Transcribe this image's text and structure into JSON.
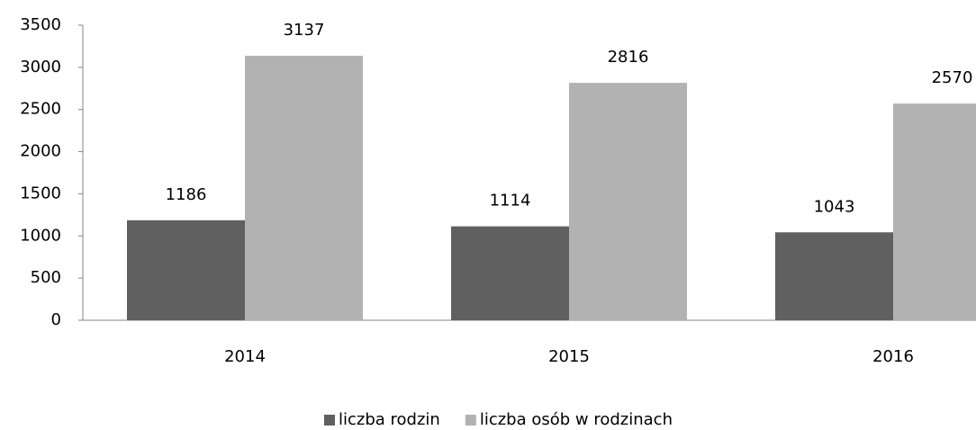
{
  "chart_data": {
    "type": "bar",
    "categories": [
      "2014",
      "2015",
      "2016"
    ],
    "series": [
      {
        "name": "liczba rodzin",
        "color": "#606060",
        "values": [
          1186,
          1114,
          1043
        ]
      },
      {
        "name": "liczba osób w rodzinach",
        "color": "#b2b2b2",
        "values": [
          3137,
          2816,
          2570
        ]
      }
    ],
    "ylim": [
      0,
      3500
    ],
    "yticks": [
      0,
      500,
      1000,
      1500,
      2000,
      2500,
      3000,
      3500
    ],
    "grid": false,
    "legend": "bottom"
  }
}
